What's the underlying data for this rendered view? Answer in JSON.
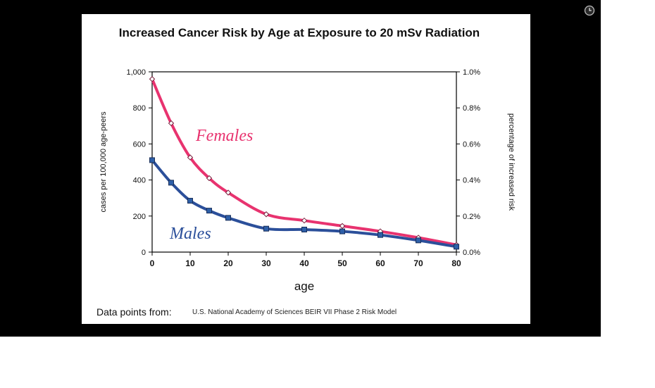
{
  "overlay": {
    "clock_icon": "clock-icon"
  },
  "chart_data": {
    "type": "line",
    "title": "Increased Cancer Risk by Age at Exposure to  20 mSv  Radiation",
    "xlabel": "age",
    "ylabel_left": "cases per 100,000 age-peers",
    "ylabel_right": "percentage of increased risk",
    "x": [
      0,
      5,
      10,
      15,
      20,
      30,
      40,
      50,
      60,
      70,
      80
    ],
    "xticks": [
      "0",
      "10",
      "20",
      "30",
      "40",
      "50",
      "60",
      "70",
      "80"
    ],
    "xlim": [
      0,
      80
    ],
    "ylim_left": [
      0,
      1000
    ],
    "yticks_left": [
      "0",
      "200",
      "400",
      "600",
      "800",
      "1,000"
    ],
    "ylim_right": [
      0.0,
      1.0
    ],
    "yticks_right": [
      "0.0%",
      "0.2%",
      "0.4%",
      "0.6%",
      "0.8%",
      "1.0%"
    ],
    "grid": false,
    "series": [
      {
        "name": "Females",
        "color": "#E8336F",
        "marker": "diamond",
        "values": [
          960,
          715,
          525,
          410,
          330,
          210,
          175,
          145,
          115,
          80,
          40
        ]
      },
      {
        "name": "Males",
        "color": "#2B4F9A",
        "marker": "square",
        "values": [
          510,
          385,
          285,
          230,
          190,
          130,
          125,
          115,
          95,
          65,
          30
        ]
      }
    ],
    "footnote_label": "Data points from:",
    "footnote_source": "U.S. National Academy of Sciences BEIR VII Phase 2 Risk Model"
  }
}
